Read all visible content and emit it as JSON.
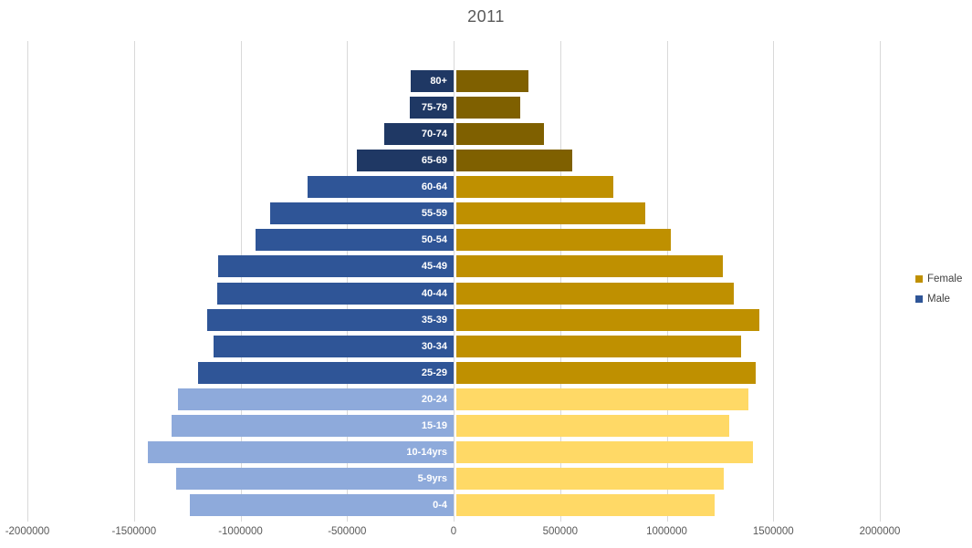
{
  "title": "2011",
  "legend": [
    {
      "label": "Female",
      "color": "#BF9000"
    },
    {
      "label": "Male",
      "color": "#2F5597"
    }
  ],
  "chart_data": {
    "type": "bar",
    "subtype": "population-pyramid",
    "title": "2011",
    "orientation": "horizontal",
    "xlabel": "",
    "ylabel": "",
    "xlim": [
      -2000000,
      2000000
    ],
    "x_ticks": [
      -2000000,
      -1500000,
      -1000000,
      -500000,
      0,
      500000,
      1000000,
      1500000,
      2000000
    ],
    "grid": "vertical",
    "legend_position": "right",
    "categories_top_to_bottom": [
      "80+",
      "75-79",
      "70-74",
      "65-69",
      "60-64",
      "55-59",
      "50-54",
      "45-49",
      "40-44",
      "35-39",
      "30-34",
      "25-29",
      "20-24",
      "15-19",
      "10-14yrs",
      "5-9yrs",
      "0-4"
    ],
    "series": [
      {
        "name": "Male",
        "values": [
          -200000,
          -205000,
          -325000,
          -455000,
          -685000,
          -860000,
          -930000,
          -1105000,
          -1110000,
          -1155000,
          -1128000,
          -1200000,
          -1295000,
          -1325000,
          -1435000,
          -1303000,
          -1240000
        ]
      },
      {
        "name": "Female",
        "values": [
          340000,
          300000,
          410000,
          545000,
          735000,
          885000,
          1005000,
          1250000,
          1300000,
          1423000,
          1335000,
          1405000,
          1372000,
          1282000,
          1390000,
          1256000,
          1210000
        ]
      }
    ],
    "rows": [
      {
        "label": "80+",
        "male": -200000,
        "female": 340000,
        "band": "dark"
      },
      {
        "label": "75-79",
        "male": -205000,
        "female": 300000,
        "band": "dark"
      },
      {
        "label": "70-74",
        "male": -325000,
        "female": 410000,
        "band": "dark"
      },
      {
        "label": "65-69",
        "male": -455000,
        "female": 545000,
        "band": "dark"
      },
      {
        "label": "60-64",
        "male": -685000,
        "female": 735000,
        "band": "mid"
      },
      {
        "label": "55-59",
        "male": -860000,
        "female": 885000,
        "band": "mid"
      },
      {
        "label": "50-54",
        "male": -930000,
        "female": 1005000,
        "band": "mid"
      },
      {
        "label": "45-49",
        "male": -1105000,
        "female": 1250000,
        "band": "mid"
      },
      {
        "label": "40-44",
        "male": -1110000,
        "female": 1300000,
        "band": "mid"
      },
      {
        "label": "35-39",
        "male": -1155000,
        "female": 1423000,
        "band": "mid"
      },
      {
        "label": "30-34",
        "male": -1128000,
        "female": 1335000,
        "band": "mid"
      },
      {
        "label": "25-29",
        "male": -1200000,
        "female": 1405000,
        "band": "mid"
      },
      {
        "label": "20-24",
        "male": -1295000,
        "female": 1372000,
        "band": "light"
      },
      {
        "label": "15-19",
        "male": -1325000,
        "female": 1282000,
        "band": "light"
      },
      {
        "label": "10-14yrs",
        "male": -1435000,
        "female": 1390000,
        "band": "light"
      },
      {
        "label": "5-9yrs",
        "male": -1303000,
        "female": 1256000,
        "band": "light"
      },
      {
        "label": "0-4",
        "male": -1240000,
        "female": 1210000,
        "band": "light"
      }
    ],
    "palette": {
      "dark": {
        "male": "#1F3864",
        "female": "#7F6000"
      },
      "mid": {
        "male": "#2F5597",
        "female": "#BF9000"
      },
      "light": {
        "male": "#8EAADB",
        "female": "#FFD966"
      }
    },
    "gridline_color": "#d9d9d9",
    "title_color": "#595959",
    "tick_label_color": "#595959"
  }
}
